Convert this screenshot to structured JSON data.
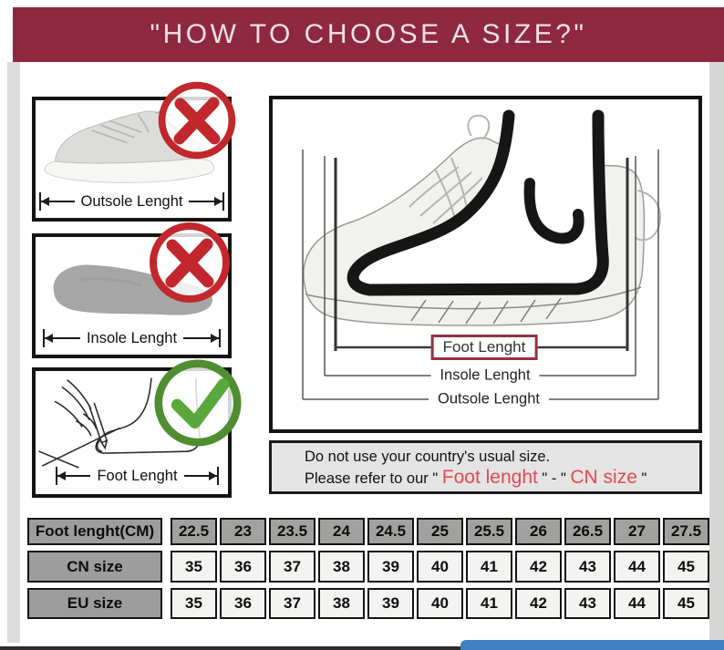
{
  "banner": {
    "title": "\"HOW TO CHOOSE A SIZE?\""
  },
  "colors": {
    "banner_bg": "#8e2840",
    "accent_red_text": "#e8484f",
    "wrong_mark_red": "#c1272d",
    "correct_mark_green": "#55a038",
    "foot_label_border": "#963142",
    "table_header_gray": "#9d9d9d",
    "table_cell_light": "#f3f3f1",
    "scrollbar_blue": "#3f80c1"
  },
  "left_panels": [
    {
      "label": "Outsole Lenght",
      "badge": "x-mark"
    },
    {
      "label": "Insole Lenght",
      "badge": "x-mark"
    },
    {
      "label": "Foot Lenght",
      "badge": "check-mark"
    }
  ],
  "diagram": {
    "foot_label": "Foot Lenght",
    "insole_label": "Insole Lenght",
    "outsole_label": "Outsole Lenght"
  },
  "note": {
    "line1": "Do not use your country's usual size.",
    "line2_prefix": "Please refer to our \" ",
    "line2_red1": "Foot lenght",
    "line2_mid": " \" - \" ",
    "line2_red2": "CN size",
    "line2_suffix": " \""
  },
  "size_table": {
    "rows": [
      {
        "label": "Foot lenght(CM)",
        "header": true,
        "values": [
          "22.5",
          "23",
          "23.5",
          "24",
          "24.5",
          "25",
          "25.5",
          "26",
          "26.5",
          "27",
          "27.5"
        ]
      },
      {
        "label": "CN size",
        "header": false,
        "values": [
          "35",
          "36",
          "37",
          "38",
          "39",
          "40",
          "41",
          "42",
          "43",
          "44",
          "45"
        ]
      },
      {
        "label": "EU size",
        "header": false,
        "values": [
          "35",
          "36",
          "37",
          "38",
          "39",
          "40",
          "41",
          "42",
          "43",
          "44",
          "45"
        ]
      }
    ]
  }
}
